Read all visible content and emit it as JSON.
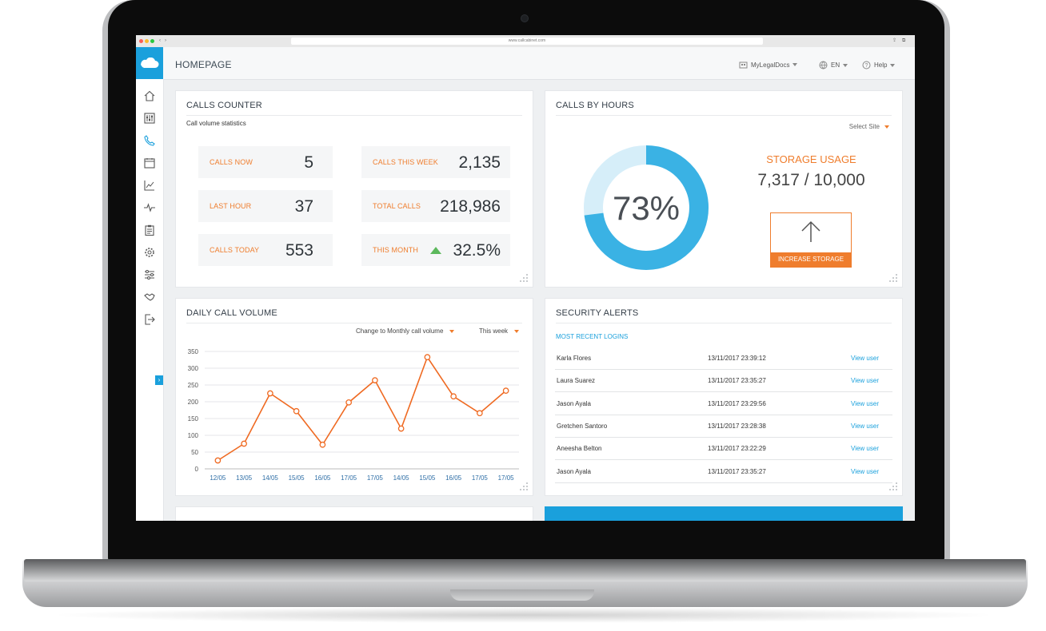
{
  "browser": {
    "url": "www.callcabinet.com"
  },
  "header": {
    "title": "HOMEPAGE",
    "account": "MyLegalDocs",
    "language": "EN",
    "help": "Help"
  },
  "calls_counter": {
    "title": "CALLS COUNTER",
    "subtitle": "Call volume statistics",
    "stats": [
      {
        "label": "CALLS NOW",
        "value": "5"
      },
      {
        "label": "CALLS THIS WEEK",
        "value": "2,135"
      },
      {
        "label": "LAST HOUR",
        "value": "37"
      },
      {
        "label": "TOTAL CALLS",
        "value": "218,986"
      },
      {
        "label": "CALLS TODAY",
        "value": "553"
      },
      {
        "label": "THIS MONTH",
        "value": "32.5%"
      }
    ]
  },
  "calls_by_hours": {
    "title": "CALLS BY HOURS",
    "select_site": "Select Site",
    "percent_label": "73%",
    "percent": 73,
    "storage_title": "STORAGE USAGE",
    "storage_value": "7,317 / 10,000",
    "increase_button": "INCREASE STORAGE"
  },
  "daily": {
    "title": "DAILY CALL VOLUME",
    "change_link": "Change to Monthly call volume",
    "period": "This week"
  },
  "chart_data": {
    "type": "line",
    "title": "DAILY CALL VOLUME",
    "categories": [
      "12/05",
      "13/05",
      "14/05",
      "15/05",
      "16/05",
      "17/05",
      "17/05",
      "14/05",
      "15/05",
      "16/05",
      "17/05",
      "17/05"
    ],
    "values": [
      25,
      75,
      225,
      172,
      72,
      198,
      264,
      120,
      333,
      216,
      166,
      233
    ],
    "ylim": [
      0,
      350
    ],
    "yticks": [
      0,
      50,
      100,
      150,
      200,
      250,
      300,
      350
    ],
    "grid": true,
    "color": "#ef6a22"
  },
  "security": {
    "title": "SECURITY ALERTS",
    "subtitle": "MOST RECENT LOGINS",
    "view_label": "View user",
    "rows": [
      {
        "name": "Karla Flores",
        "time": "13/11/2017 23:39:12"
      },
      {
        "name": "Laura Suarez",
        "time": "13/11/2017 23:35:27"
      },
      {
        "name": "Jason Ayala",
        "time": "13/11/2017 23:29:56"
      },
      {
        "name": "Gretchen Santoro",
        "time": "13/11/2017 23:28:38"
      },
      {
        "name": "Aneesha Belton",
        "time": "13/11/2017 23:22:29"
      },
      {
        "name": "Jason Ayala",
        "time": "13/11/2017 23:35:27"
      }
    ]
  },
  "colors": {
    "accent": "#1aa0dc",
    "orange": "#ef7d2d",
    "green": "#5cb85c"
  },
  "icons": [
    "home-icon",
    "dashboard-icon",
    "phone-icon",
    "calendar-icon",
    "chart-icon",
    "pulse-icon",
    "clipboard-icon",
    "gear-icon",
    "sliders-icon",
    "handshake-icon",
    "logout-icon"
  ]
}
